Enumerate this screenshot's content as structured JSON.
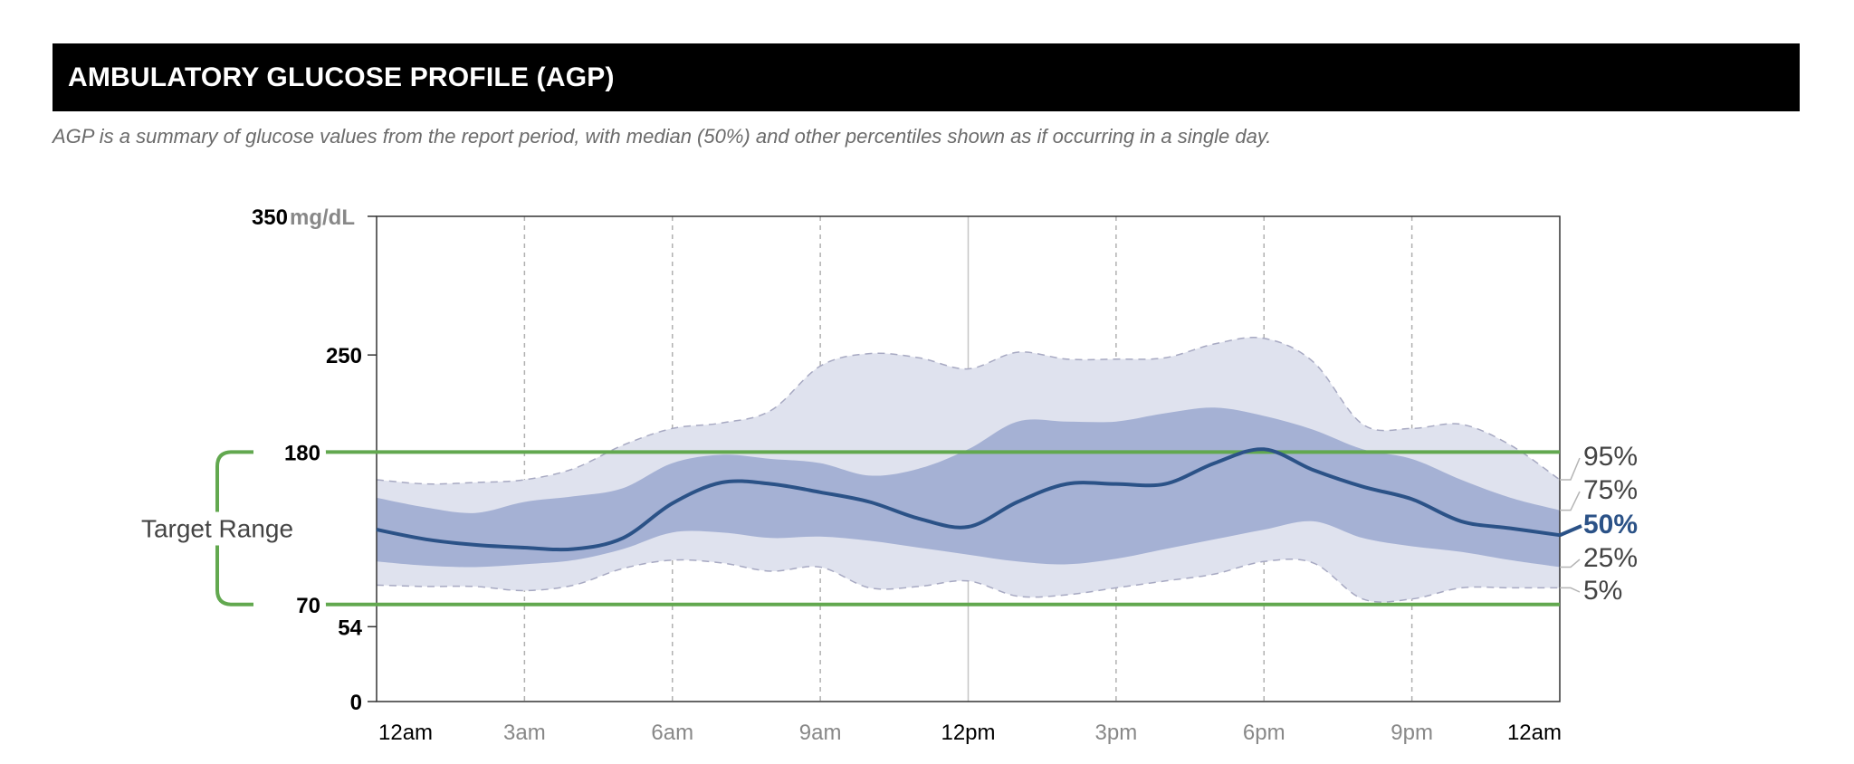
{
  "header": {
    "title": "AMBULATORY GLUCOSE PROFILE (AGP)",
    "subtitle": "AGP is a summary of glucose values from the report period, with median (50%) and other percentiles shown as if occurring in a single day."
  },
  "colors": {
    "band_outer": "#dfe2ee",
    "band_inner": "#a5b1d4",
    "median_line": "#2b5287",
    "target_line": "#62a84f",
    "axis_text": "#000000",
    "muted_text": "#888888",
    "grid_dashed": "#b0b0b0",
    "grid_solid": "#c6c6c6",
    "outline_dashed": "#a7a9c2"
  },
  "chart_data": {
    "type": "area",
    "title": "Ambulatory Glucose Profile",
    "ylabel": "mg/dL",
    "ylim": [
      0,
      350
    ],
    "xlim": [
      0,
      24
    ],
    "y_unit_label": "mg/dL",
    "y_ticks": [
      {
        "value": 0,
        "label": "0"
      },
      {
        "value": 54,
        "label": "54"
      },
      {
        "value": 70,
        "label": "70"
      },
      {
        "value": 180,
        "label": "180"
      },
      {
        "value": 250,
        "label": "250"
      },
      {
        "value": 350,
        "label": "350"
      }
    ],
    "x_ticks": [
      {
        "hour": 0,
        "label": "12am",
        "emphasis": true
      },
      {
        "hour": 3,
        "label": "3am",
        "emphasis": false
      },
      {
        "hour": 6,
        "label": "6am",
        "emphasis": false
      },
      {
        "hour": 9,
        "label": "9am",
        "emphasis": false
      },
      {
        "hour": 12,
        "label": "12pm",
        "emphasis": true
      },
      {
        "hour": 15,
        "label": "3pm",
        "emphasis": false
      },
      {
        "hour": 18,
        "label": "6pm",
        "emphasis": false
      },
      {
        "hour": 21,
        "label": "9pm",
        "emphasis": false
      },
      {
        "hour": 24,
        "label": "12am",
        "emphasis": true
      }
    ],
    "target_range": {
      "label": "Target Range",
      "low": 70,
      "high": 180
    },
    "hours": [
      0,
      1,
      2,
      3,
      4,
      5,
      6,
      7,
      8,
      9,
      10,
      11,
      12,
      13,
      14,
      15,
      16,
      17,
      18,
      19,
      20,
      21,
      22,
      23,
      24
    ],
    "series": [
      {
        "name": "95%",
        "label": "95%",
        "values": [
          160,
          157,
          158,
          160,
          168,
          185,
          197,
          201,
          210,
          242,
          251,
          248,
          240,
          252,
          247,
          247,
          248,
          258,
          262,
          245,
          200,
          197,
          200,
          185,
          160
        ]
      },
      {
        "name": "75%",
        "label": "75%",
        "values": [
          147,
          140,
          136,
          144,
          148,
          154,
          172,
          178,
          175,
          172,
          163,
          168,
          182,
          202,
          202,
          202,
          208,
          212,
          206,
          196,
          182,
          175,
          160,
          147,
          138
        ]
      },
      {
        "name": "50%",
        "label": "50%",
        "values": [
          124,
          117,
          113,
          111,
          110,
          118,
          143,
          158,
          157,
          151,
          144,
          132,
          126,
          144,
          157,
          157,
          157,
          172,
          182,
          167,
          155,
          146,
          130,
          125,
          120
        ]
      },
      {
        "name": "25%",
        "label": "25%",
        "values": [
          101,
          98,
          97,
          99,
          102,
          110,
          122,
          122,
          118,
          119,
          116,
          111,
          106,
          101,
          99,
          103,
          110,
          117,
          124,
          130,
          118,
          112,
          108,
          102,
          97
        ]
      },
      {
        "name": "5%",
        "label": "5%",
        "values": [
          84,
          83,
          83,
          80,
          84,
          96,
          102,
          100,
          94,
          97,
          82,
          83,
          87,
          76,
          77,
          82,
          87,
          92,
          101,
          100,
          74,
          74,
          82,
          82,
          82
        ]
      }
    ]
  }
}
